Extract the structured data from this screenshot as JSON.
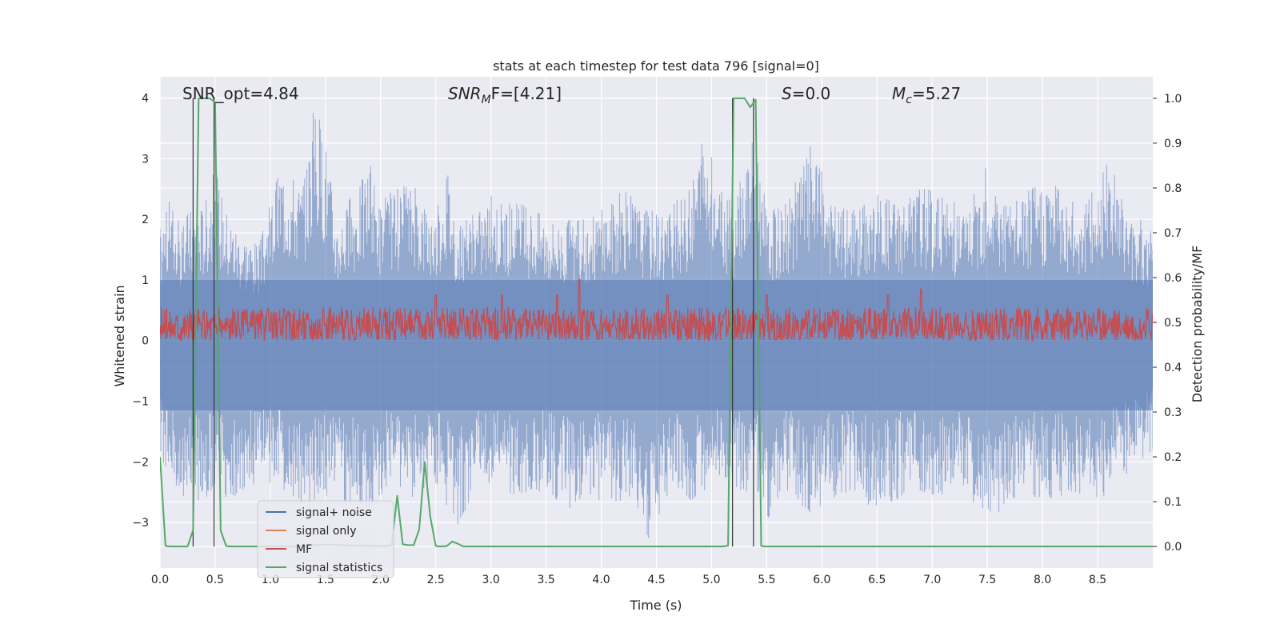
{
  "chart_data": {
    "type": "line",
    "title": "stats at each timestep for test data 796 [signal=0]",
    "xlabel": "Time (s)",
    "ylabel": "Whitened strain",
    "y2label": "Detection probability/MF",
    "xlim": [
      0.0,
      9.0
    ],
    "ylim": [
      -3.75,
      4.35
    ],
    "y2lim": [
      -0.048,
      1.048
    ],
    "xticks": [
      "0.0",
      "0.5",
      "1.0",
      "1.5",
      "2.0",
      "2.5",
      "3.0",
      "3.5",
      "4.0",
      "4.5",
      "5.0",
      "5.5",
      "6.0",
      "6.5",
      "7.0",
      "7.5",
      "8.0",
      "8.5"
    ],
    "yticks": [
      "4",
      "3",
      "2",
      "1",
      "0",
      "−1",
      "−2",
      "−3"
    ],
    "y2ticks": [
      "1.0",
      "0.9",
      "0.8",
      "0.7",
      "0.6",
      "0.5",
      "0.4",
      "0.3",
      "0.2",
      "0.1",
      "0.0"
    ],
    "grid": true,
    "legend_placement": "lower-left",
    "annotations": {
      "snr_opt": "SNR_opt=4.84",
      "snr_mf_base": "SNR",
      "snr_mf_sub": "M",
      "snr_mf_rest": "F=[4.21]",
      "s_label": "S",
      "s_rest": "=0.0",
      "mc_label": "M",
      "mc_sub": "c",
      "mc_rest": "=5.27"
    },
    "noise": {
      "upper_envelope": [
        [
          0.0,
          1.9
        ],
        [
          0.1,
          2.4
        ],
        [
          0.2,
          1.8
        ],
        [
          0.25,
          2.2
        ],
        [
          0.4,
          2.3
        ],
        [
          0.5,
          2.9
        ],
        [
          0.6,
          2.2
        ],
        [
          0.7,
          1.9
        ],
        [
          0.9,
          1.6
        ],
        [
          1.1,
          3.0
        ],
        [
          1.3,
          2.6
        ],
        [
          1.4,
          4.0
        ],
        [
          1.5,
          3.4
        ],
        [
          1.6,
          2.0
        ],
        [
          1.8,
          2.6
        ],
        [
          1.9,
          3.0
        ],
        [
          2.0,
          2.3
        ],
        [
          2.1,
          2.5
        ],
        [
          2.3,
          2.6
        ],
        [
          2.5,
          2.1
        ],
        [
          2.6,
          3.0
        ],
        [
          2.7,
          1.9
        ],
        [
          2.9,
          2.2
        ],
        [
          3.0,
          2.4
        ],
        [
          3.2,
          2.3
        ],
        [
          3.4,
          2.2
        ],
        [
          3.6,
          2.0
        ],
        [
          3.8,
          2.0
        ],
        [
          4.0,
          2.2
        ],
        [
          4.2,
          2.5
        ],
        [
          4.4,
          2.2
        ],
        [
          4.6,
          2.2
        ],
        [
          4.8,
          2.5
        ],
        [
          4.9,
          3.3
        ],
        [
          5.0,
          3.1
        ],
        [
          5.1,
          2.4
        ],
        [
          5.2,
          2.3
        ],
        [
          5.4,
          3.6
        ],
        [
          5.5,
          2.1
        ],
        [
          5.7,
          2.4
        ],
        [
          5.9,
          3.3
        ],
        [
          6.1,
          2.3
        ],
        [
          6.3,
          2.2
        ],
        [
          6.5,
          2.5
        ],
        [
          6.7,
          2.4
        ],
        [
          6.9,
          2.6
        ],
        [
          7.1,
          2.4
        ],
        [
          7.3,
          2.2
        ],
        [
          7.5,
          2.9
        ],
        [
          7.7,
          2.3
        ],
        [
          7.9,
          2.6
        ],
        [
          8.1,
          2.8
        ],
        [
          8.3,
          2.3
        ],
        [
          8.5,
          2.6
        ],
        [
          8.6,
          3.0
        ],
        [
          8.8,
          2.1
        ],
        [
          9.0,
          1.9
        ]
      ],
      "lower_envelope": [
        [
          0.0,
          -1.9
        ],
        [
          0.1,
          -2.4
        ],
        [
          0.3,
          -2.7
        ],
        [
          0.5,
          -2.5
        ],
        [
          0.7,
          -2.7
        ],
        [
          0.9,
          -2.3
        ],
        [
          1.1,
          -2.5
        ],
        [
          1.3,
          -3.0
        ],
        [
          1.5,
          -2.6
        ],
        [
          1.7,
          -2.8
        ],
        [
          1.9,
          -2.8
        ],
        [
          2.0,
          -2.7
        ],
        [
          2.1,
          -2.3
        ],
        [
          2.3,
          -2.6
        ],
        [
          2.5,
          -2.4
        ],
        [
          2.7,
          -3.1
        ],
        [
          2.9,
          -2.5
        ],
        [
          3.1,
          -2.5
        ],
        [
          3.3,
          -2.7
        ],
        [
          3.5,
          -2.5
        ],
        [
          3.7,
          -2.8
        ],
        [
          3.9,
          -2.6
        ],
        [
          4.1,
          -2.7
        ],
        [
          4.3,
          -2.8
        ],
        [
          4.45,
          -3.4
        ],
        [
          4.6,
          -2.6
        ],
        [
          4.8,
          -2.7
        ],
        [
          5.0,
          -2.5
        ],
        [
          5.2,
          -2.4
        ],
        [
          5.4,
          -2.6
        ],
        [
          5.5,
          -3.0
        ],
        [
          5.7,
          -2.5
        ],
        [
          5.9,
          -2.9
        ],
        [
          6.1,
          -2.6
        ],
        [
          6.3,
          -2.5
        ],
        [
          6.5,
          -2.9
        ],
        [
          6.7,
          -2.6
        ],
        [
          6.9,
          -2.5
        ],
        [
          7.1,
          -2.7
        ],
        [
          7.3,
          -2.5
        ],
        [
          7.5,
          -3.0
        ],
        [
          7.7,
          -2.7
        ],
        [
          7.9,
          -2.6
        ],
        [
          8.1,
          -2.6
        ],
        [
          8.3,
          -2.5
        ],
        [
          8.5,
          -2.8
        ],
        [
          8.7,
          -2.3
        ],
        [
          9.0,
          -1.8
        ]
      ]
    },
    "mf": {
      "base": 0.0,
      "center": 0.25,
      "amplitude": 0.3,
      "peaks": [
        [
          3.8,
          1.0
        ],
        [
          2.5,
          0.75
        ],
        [
          3.1,
          0.75
        ],
        [
          3.6,
          0.75
        ],
        [
          4.6,
          0.75
        ],
        [
          5.5,
          0.75
        ],
        [
          6.6,
          0.75
        ],
        [
          6.9,
          0.85
        ]
      ]
    },
    "vlines_s": [
      0.3,
      0.49,
      5.19,
      5.38
    ],
    "series": [
      {
        "name": "signal+ noise",
        "color": "#4c72b0"
      },
      {
        "name": "signal only",
        "color": "#dd8452"
      },
      {
        "name": "MF",
        "color": "#c44e52"
      },
      {
        "name": "signal statistics",
        "color": "#55a868",
        "x": [
          0.0,
          0.05,
          0.1,
          0.15,
          0.2,
          0.25,
          0.3,
          0.35,
          0.4,
          0.45,
          0.5,
          0.55,
          0.6,
          0.65,
          0.7,
          0.75,
          0.8,
          0.85,
          0.9,
          0.95,
          1.0,
          1.05,
          1.1,
          1.15,
          1.2,
          1.25,
          1.3,
          1.35,
          1.4,
          1.45,
          1.5,
          1.55,
          1.6,
          1.65,
          1.7,
          1.75,
          1.8,
          1.85,
          1.9,
          1.95,
          2.0,
          2.05,
          2.1,
          2.15,
          2.2,
          2.25,
          2.3,
          2.35,
          2.4,
          2.45,
          2.5,
          2.55,
          2.6,
          2.65,
          2.7,
          2.75,
          2.8,
          2.85,
          2.9,
          3.0,
          4.0,
          4.5,
          5.0,
          5.1,
          5.15,
          5.2,
          5.25,
          5.3,
          5.35,
          5.4,
          5.45,
          5.5,
          5.6,
          6.0,
          7.0,
          8.0,
          9.0
        ],
        "y": [
          0.2,
          0.001,
          0.0,
          0.0,
          0.0,
          0.0,
          0.037,
          1.0,
          1.0,
          1.0,
          0.991,
          0.036,
          0.001,
          0.0,
          0.0,
          0.0,
          0.0,
          0.0,
          0.0,
          0.0,
          0.0,
          0.0,
          0.0,
          0.0,
          0.0,
          0.0,
          0.0,
          0.002,
          0.003,
          0.004,
          0.004,
          0.004,
          0.004,
          0.003,
          0.002,
          0.002,
          0.002,
          0.002,
          0.001,
          0.001,
          0.001,
          0.001,
          0.003,
          0.113,
          0.005,
          0.003,
          0.003,
          0.038,
          0.188,
          0.067,
          0.001,
          0.0,
          0.001,
          0.011,
          0.006,
          0.0,
          0.0,
          0.0,
          0.0,
          0.0,
          0.0,
          0.0,
          0.0,
          0.0,
          0.002,
          1.0,
          1.0,
          1.0,
          0.98,
          0.997,
          0.001,
          0.0,
          0.0,
          0.0,
          0.0,
          0.0,
          0.0
        ]
      }
    ]
  }
}
